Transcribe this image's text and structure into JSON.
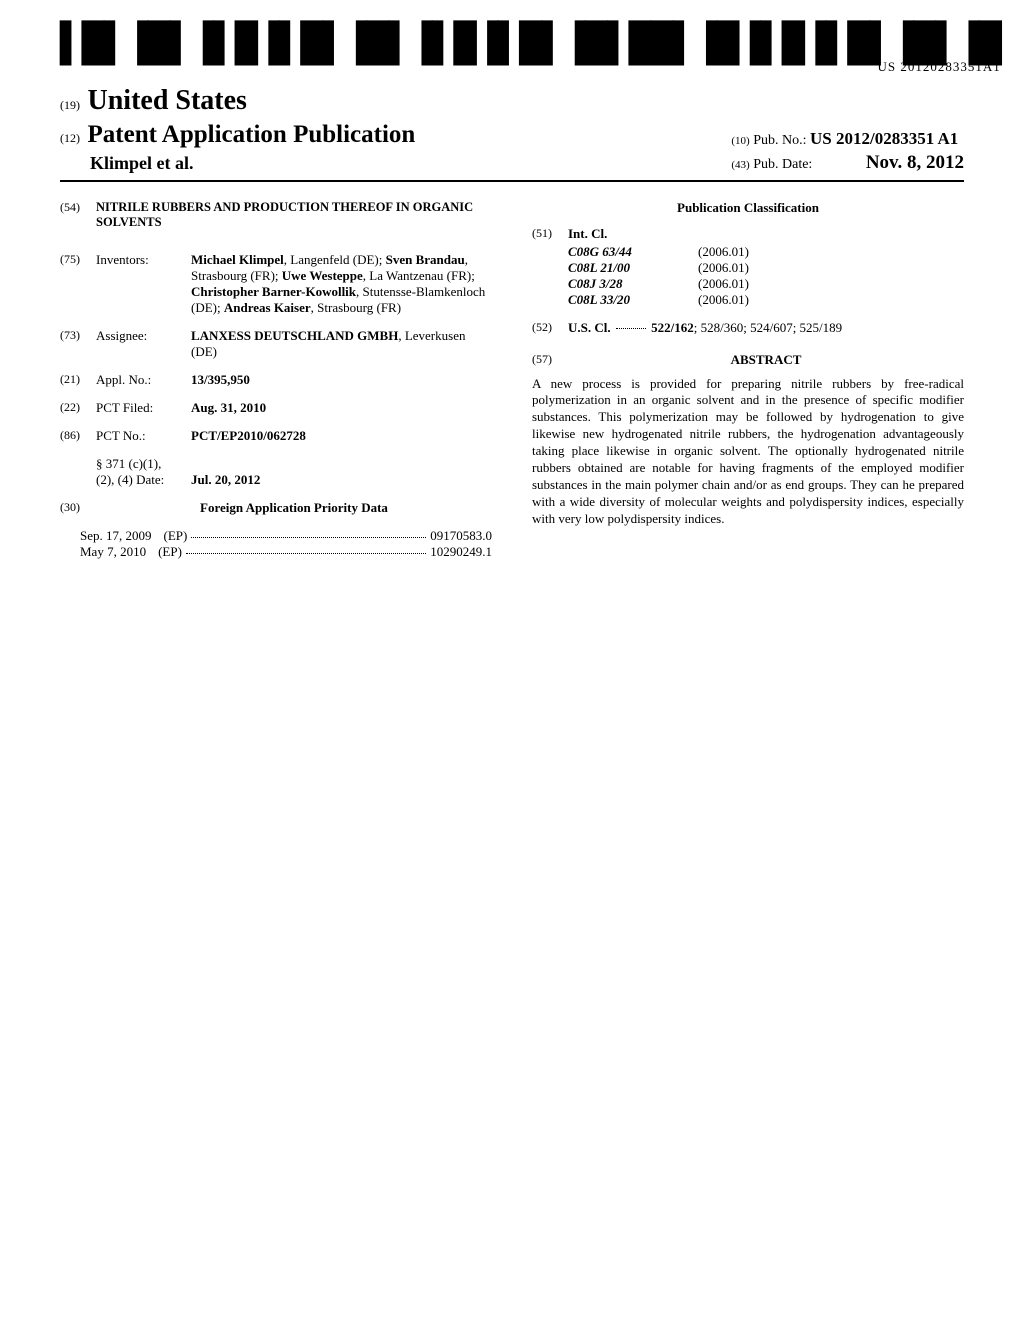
{
  "barcode": {
    "number": "US 20120283351A1"
  },
  "header": {
    "country_num": "(19)",
    "country": "United States",
    "pub_num": "(12)",
    "pub_title": "Patent Application Publication",
    "authors": "Klimpel et al.",
    "pubno_num": "(10)",
    "pubno_label": "Pub. No.:",
    "pubno_value": "US 2012/0283351 A1",
    "pubdate_num": "(43)",
    "pubdate_label": "Pub. Date:",
    "pubdate_value": "Nov. 8, 2012"
  },
  "left": {
    "title_num": "(54)",
    "title": "NITRILE RUBBERS AND PRODUCTION THEREOF IN ORGANIC SOLVENTS",
    "inventors_num": "(75)",
    "inventors_label": "Inventors:",
    "inventors_html": "<b>Michael Klimpel</b>, Langenfeld (DE); <b>Sven Brandau</b>, Strasbourg (FR); <b>Uwe Westeppe</b>, La Wantzenau (FR); <b>Christopher Barner-Kowollik</b>, Stutensse-Blamkenloch (DE); <b>Andreas Kaiser</b>, Strasbourg (FR)",
    "assignee_num": "(73)",
    "assignee_label": "Assignee:",
    "assignee_html": "<b>LANXESS DEUTSCHLAND GMBH</b>, Leverkusen (DE)",
    "applno_num": "(21)",
    "applno_label": "Appl. No.:",
    "applno_value": "13/395,950",
    "pctfiled_num": "(22)",
    "pctfiled_label": "PCT Filed:",
    "pctfiled_value": "Aug. 31, 2010",
    "pctno_num": "(86)",
    "pctno_label": "PCT No.:",
    "pctno_value": "PCT/EP2010/062728",
    "section371_label": "§ 371 (c)(1),",
    "section371_date_label": "(2), (4) Date:",
    "section371_date_value": "Jul. 20, 2012",
    "priority_num": "(30)",
    "priority_title": "Foreign Application Priority Data",
    "priority_rows": [
      {
        "date": "Sep. 17, 2009",
        "country": "(EP)",
        "number": "09170583.0"
      },
      {
        "date": "May 7, 2010",
        "country": "(EP)",
        "number": "10290249.1"
      }
    ]
  },
  "right": {
    "pubclass_title": "Publication Classification",
    "intcl_num": "(51)",
    "intcl_label": "Int. Cl.",
    "intcl": [
      {
        "code": "C08G 63/44",
        "year": "(2006.01)"
      },
      {
        "code": "C08L 21/00",
        "year": "(2006.01)"
      },
      {
        "code": "C08J 3/28",
        "year": "(2006.01)"
      },
      {
        "code": "C08L 33/20",
        "year": "(2006.01)"
      }
    ],
    "uscl_num": "(52)",
    "uscl_label": "U.S. Cl.",
    "uscl_value": "522/162; 528/360; 524/607; 525/189",
    "abstract_num": "(57)",
    "abstract_title": "ABSTRACT",
    "abstract_text": "A new process is provided for preparing nitrile rubbers by free-radical polymerization in an organic solvent and in the presence of specific modifier substances. This polymerization may be followed by hydrogenation to give likewise new hydrogenated nitrile rubbers, the hydrogenation advantageously taking place likewise in organic solvent. The optionally hydrogenated nitrile rubbers obtained are notable for having fragments of the employed modifier substances in the main polymer chain and/or as end groups. They can he prepared with a wide diversity of molecular weights and polydispersity indices, especially with very low polydispersity indices."
  }
}
